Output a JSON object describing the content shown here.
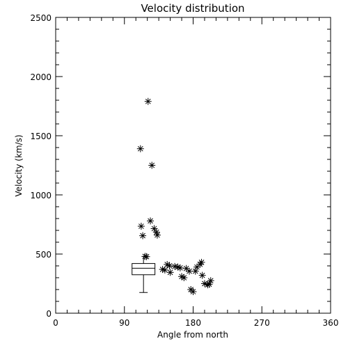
{
  "chart_data": {
    "type": "scatter",
    "title": "Velocity distribution",
    "xlabel": "Angle from north",
    "ylabel": "Velocity (km/s)",
    "xlim": [
      0,
      360
    ],
    "ylim": [
      0,
      2500
    ],
    "xticks": [
      0,
      90,
      180,
      270,
      360
    ],
    "yticks": [
      0,
      500,
      1000,
      1500,
      2000,
      2500
    ],
    "marker": "asterisk",
    "grid": false,
    "points": [
      {
        "x": 121,
        "y": 1790
      },
      {
        "x": 111,
        "y": 1390
      },
      {
        "x": 126,
        "y": 1250
      },
      {
        "x": 124,
        "y": 780
      },
      {
        "x": 112,
        "y": 735
      },
      {
        "x": 129,
        "y": 715
      },
      {
        "x": 132,
        "y": 685
      },
      {
        "x": 133,
        "y": 660
      },
      {
        "x": 114,
        "y": 655
      },
      {
        "x": 117,
        "y": 480
      },
      {
        "x": 119,
        "y": 478
      },
      {
        "x": 140,
        "y": 370
      },
      {
        "x": 143,
        "y": 365
      },
      {
        "x": 146,
        "y": 412
      },
      {
        "x": 149,
        "y": 400
      },
      {
        "x": 150,
        "y": 345
      },
      {
        "x": 156,
        "y": 395
      },
      {
        "x": 160,
        "y": 390
      },
      {
        "x": 163,
        "y": 383
      },
      {
        "x": 165,
        "y": 310
      },
      {
        "x": 168,
        "y": 300
      },
      {
        "x": 171,
        "y": 378
      },
      {
        "x": 175,
        "y": 355
      },
      {
        "x": 177,
        "y": 200
      },
      {
        "x": 180,
        "y": 182
      },
      {
        "x": 183,
        "y": 355
      },
      {
        "x": 185,
        "y": 390
      },
      {
        "x": 189,
        "y": 413
      },
      {
        "x": 191,
        "y": 430
      },
      {
        "x": 192,
        "y": 320
      },
      {
        "x": 195,
        "y": 250
      },
      {
        "x": 199,
        "y": 240
      },
      {
        "x": 201,
        "y": 245
      },
      {
        "x": 203,
        "y": 275
      }
    ],
    "boxplot": {
      "x": 115,
      "half_width": 15,
      "whisker_low": 175,
      "q1": 325,
      "median": 380,
      "q3": 420,
      "whisker_high": 480
    }
  }
}
